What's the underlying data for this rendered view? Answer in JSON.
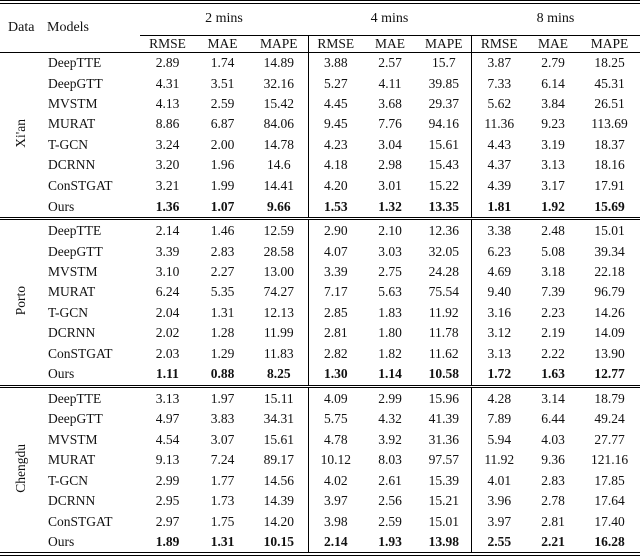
{
  "table": {
    "corner": {
      "data_label": "Data",
      "models_label": "Models"
    },
    "groups": [
      {
        "label": "2 mins",
        "metrics": [
          "RMSE",
          "MAE",
          "MAPE"
        ]
      },
      {
        "label": "4 mins",
        "metrics": [
          "RMSE",
          "MAE",
          "MAPE"
        ]
      },
      {
        "label": "8 mins",
        "metrics": [
          "RMSE",
          "MAE",
          "MAPE"
        ]
      }
    ],
    "blocks": [
      {
        "dataset": "Xi'an",
        "rows": [
          {
            "model": "DeepTTE",
            "best": false,
            "values": [
              "2.89",
              "1.74",
              "14.89",
              "3.88",
              "2.57",
              "15.7",
              "3.87",
              "2.79",
              "18.25"
            ]
          },
          {
            "model": "DeepGTT",
            "best": false,
            "values": [
              "4.31",
              "3.51",
              "32.16",
              "5.27",
              "4.11",
              "39.85",
              "7.33",
              "6.14",
              "45.31"
            ]
          },
          {
            "model": "MVSTM",
            "best": false,
            "values": [
              "4.13",
              "2.59",
              "15.42",
              "4.45",
              "3.68",
              "29.37",
              "5.62",
              "3.84",
              "26.51"
            ]
          },
          {
            "model": "MURAT",
            "best": false,
            "values": [
              "8.86",
              "6.87",
              "84.06",
              "9.45",
              "7.76",
              "94.16",
              "11.36",
              "9.23",
              "113.69"
            ]
          },
          {
            "model": "T-GCN",
            "best": false,
            "values": [
              "3.24",
              "2.00",
              "14.78",
              "4.23",
              "3.04",
              "15.61",
              "4.43",
              "3.19",
              "18.37"
            ]
          },
          {
            "model": "DCRNN",
            "best": false,
            "values": [
              "3.20",
              "1.96",
              "14.6",
              "4.18",
              "2.98",
              "15.43",
              "4.37",
              "3.13",
              "18.16"
            ]
          },
          {
            "model": "ConSTGAT",
            "best": false,
            "values": [
              "3.21",
              "1.99",
              "14.41",
              "4.20",
              "3.01",
              "15.22",
              "4.39",
              "3.17",
              "17.91"
            ]
          },
          {
            "model": "Ours",
            "best": true,
            "values": [
              "1.36",
              "1.07",
              "9.66",
              "1.53",
              "1.32",
              "13.35",
              "1.81",
              "1.92",
              "15.69"
            ]
          }
        ]
      },
      {
        "dataset": "Porto",
        "rows": [
          {
            "model": "DeepTTE",
            "best": false,
            "values": [
              "2.14",
              "1.46",
              "12.59",
              "2.90",
              "2.10",
              "12.36",
              "3.38",
              "2.48",
              "15.01"
            ]
          },
          {
            "model": "DeepGTT",
            "best": false,
            "values": [
              "3.39",
              "2.83",
              "28.58",
              "4.07",
              "3.03",
              "32.05",
              "6.23",
              "5.08",
              "39.34"
            ]
          },
          {
            "model": "MVSTM",
            "best": false,
            "values": [
              "3.10",
              "2.27",
              "13.00",
              "3.39",
              "2.75",
              "24.28",
              "4.69",
              "3.18",
              "22.18"
            ]
          },
          {
            "model": "MURAT",
            "best": false,
            "values": [
              "6.24",
              "5.35",
              "74.27",
              "7.17",
              "5.63",
              "75.54",
              "9.40",
              "7.39",
              "96.79"
            ]
          },
          {
            "model": "T-GCN",
            "best": false,
            "values": [
              "2.04",
              "1.31",
              "12.13",
              "2.85",
              "1.83",
              "11.92",
              "3.16",
              "2.23",
              "14.26"
            ]
          },
          {
            "model": "DCRNN",
            "best": false,
            "values": [
              "2.02",
              "1.28",
              "11.99",
              "2.81",
              "1.80",
              "11.78",
              "3.12",
              "2.19",
              "14.09"
            ]
          },
          {
            "model": "ConSTGAT",
            "best": false,
            "values": [
              "2.03",
              "1.29",
              "11.83",
              "2.82",
              "1.82",
              "11.62",
              "3.13",
              "2.22",
              "13.90"
            ]
          },
          {
            "model": "Ours",
            "best": true,
            "values": [
              "1.11",
              "0.88",
              "8.25",
              "1.30",
              "1.14",
              "10.58",
              "1.72",
              "1.63",
              "12.77"
            ]
          }
        ]
      },
      {
        "dataset": "Chengdu",
        "rows": [
          {
            "model": "DeepTTE",
            "best": false,
            "values": [
              "3.13",
              "1.97",
              "15.11",
              "4.09",
              "2.99",
              "15.96",
              "4.28",
              "3.14",
              "18.79"
            ]
          },
          {
            "model": "DeepGTT",
            "best": false,
            "values": [
              "4.97",
              "3.83",
              "34.31",
              "5.75",
              "4.32",
              "41.39",
              "7.89",
              "6.44",
              "49.24"
            ]
          },
          {
            "model": "MVSTM",
            "best": false,
            "values": [
              "4.54",
              "3.07",
              "15.61",
              "4.78",
              "3.92",
              "31.36",
              "5.94",
              "4.03",
              "27.77"
            ]
          },
          {
            "model": "MURAT",
            "best": false,
            "values": [
              "9.13",
              "7.24",
              "89.17",
              "10.12",
              "8.03",
              "97.57",
              "11.92",
              "9.36",
              "121.16"
            ]
          },
          {
            "model": "T-GCN",
            "best": false,
            "values": [
              "2.99",
              "1.77",
              "14.56",
              "4.02",
              "2.61",
              "15.39",
              "4.01",
              "2.83",
              "17.85"
            ]
          },
          {
            "model": "DCRNN",
            "best": false,
            "values": [
              "2.95",
              "1.73",
              "14.39",
              "3.97",
              "2.56",
              "15.21",
              "3.96",
              "2.78",
              "17.64"
            ]
          },
          {
            "model": "ConSTGAT",
            "best": false,
            "values": [
              "2.97",
              "1.75",
              "14.20",
              "3.98",
              "2.59",
              "15.01",
              "3.97",
              "2.81",
              "17.40"
            ]
          },
          {
            "model": "Ours",
            "best": true,
            "values": [
              "1.89",
              "1.31",
              "10.15",
              "2.14",
              "1.93",
              "13.98",
              "2.55",
              "2.21",
              "16.28"
            ]
          }
        ]
      }
    ]
  }
}
